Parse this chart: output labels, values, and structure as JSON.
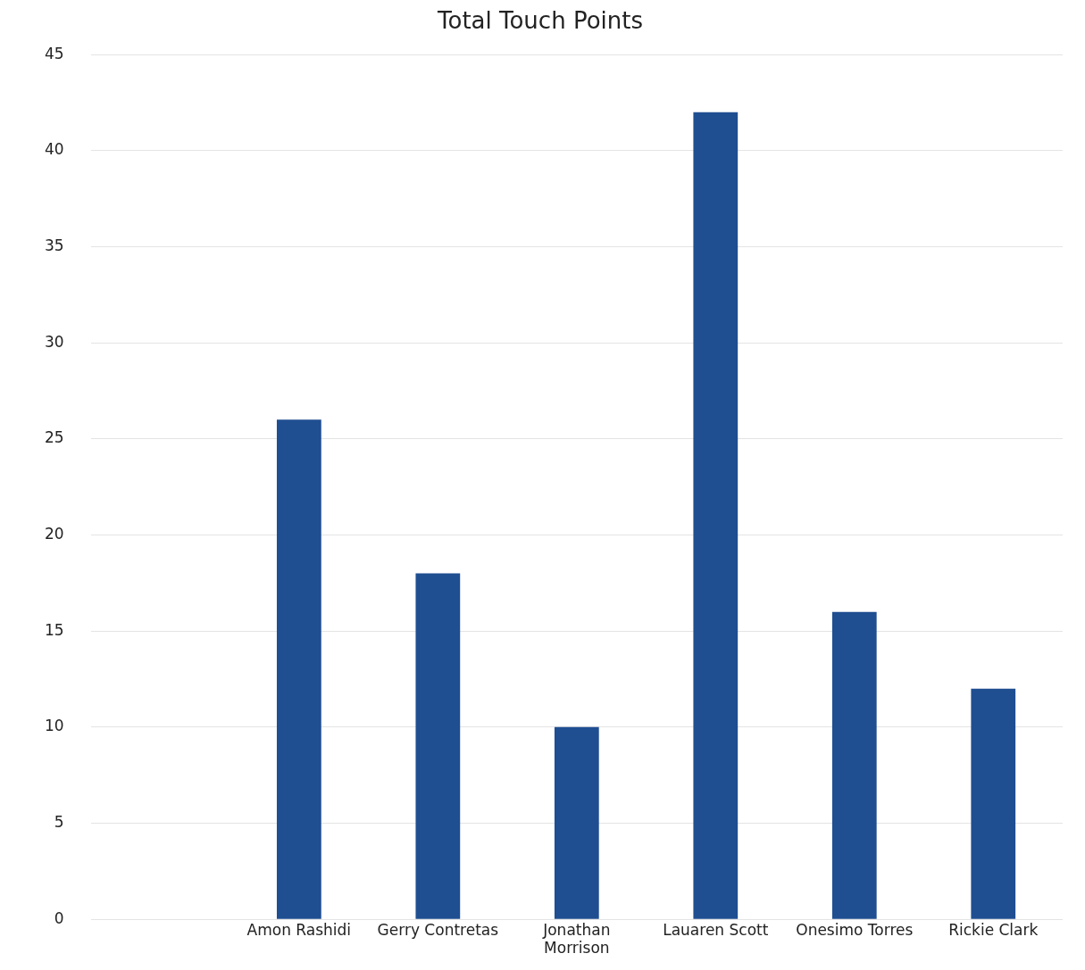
{
  "chart_data": {
    "type": "bar",
    "title": "Total Touch Points",
    "categories": [
      null,
      "Amon Rashidi",
      "Gerry Contretas",
      "Jonathan Morrison",
      "Lauaren Scott",
      "Onesimo Torres",
      "Rickie Clark"
    ],
    "values": [
      null,
      26,
      18,
      10,
      42,
      16,
      12
    ],
    "color": "#1f4e91",
    "ylim": [
      0,
      45
    ],
    "yticks": [
      0,
      5,
      10,
      15,
      20,
      25,
      30,
      35,
      40,
      45
    ],
    "grid": "y",
    "legend": false
  }
}
